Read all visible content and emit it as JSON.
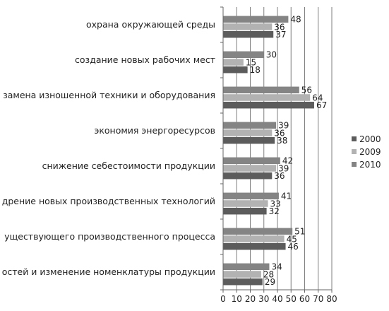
{
  "chart_data": {
    "type": "bar",
    "orientation": "horizontal",
    "categories": [
      "охрана окружающей среды",
      "создание новых рабочих мест",
      "замена изношенной техники и оборудования",
      "экономия энергоресурсов",
      "снижение себестоимости продукции",
      "дрение новых производственных технологий",
      "уществующего производственного процесса",
      "остей и изменение номенклатуры продукции"
    ],
    "series": [
      {
        "name": "2010",
        "color": "#848484",
        "values": [
          48,
          30,
          56,
          39,
          42,
          41,
          51,
          34
        ]
      },
      {
        "name": "2009",
        "color": "#b2b2b2",
        "values": [
          36,
          15,
          64,
          36,
          39,
          33,
          45,
          28
        ]
      },
      {
        "name": "2000",
        "color": "#5c5c5c",
        "values": [
          37,
          18,
          67,
          38,
          36,
          32,
          46,
          29
        ]
      }
    ],
    "legend_order": [
      "2000",
      "2009",
      "2010"
    ],
    "legend_position": "right",
    "xlim": [
      0,
      80
    ],
    "xticks": [
      0,
      10,
      20,
      30,
      40,
      50,
      60,
      70,
      80
    ],
    "grid": "vertical",
    "data_labels": true,
    "title": "",
    "xlabel": "",
    "ylabel": ""
  }
}
